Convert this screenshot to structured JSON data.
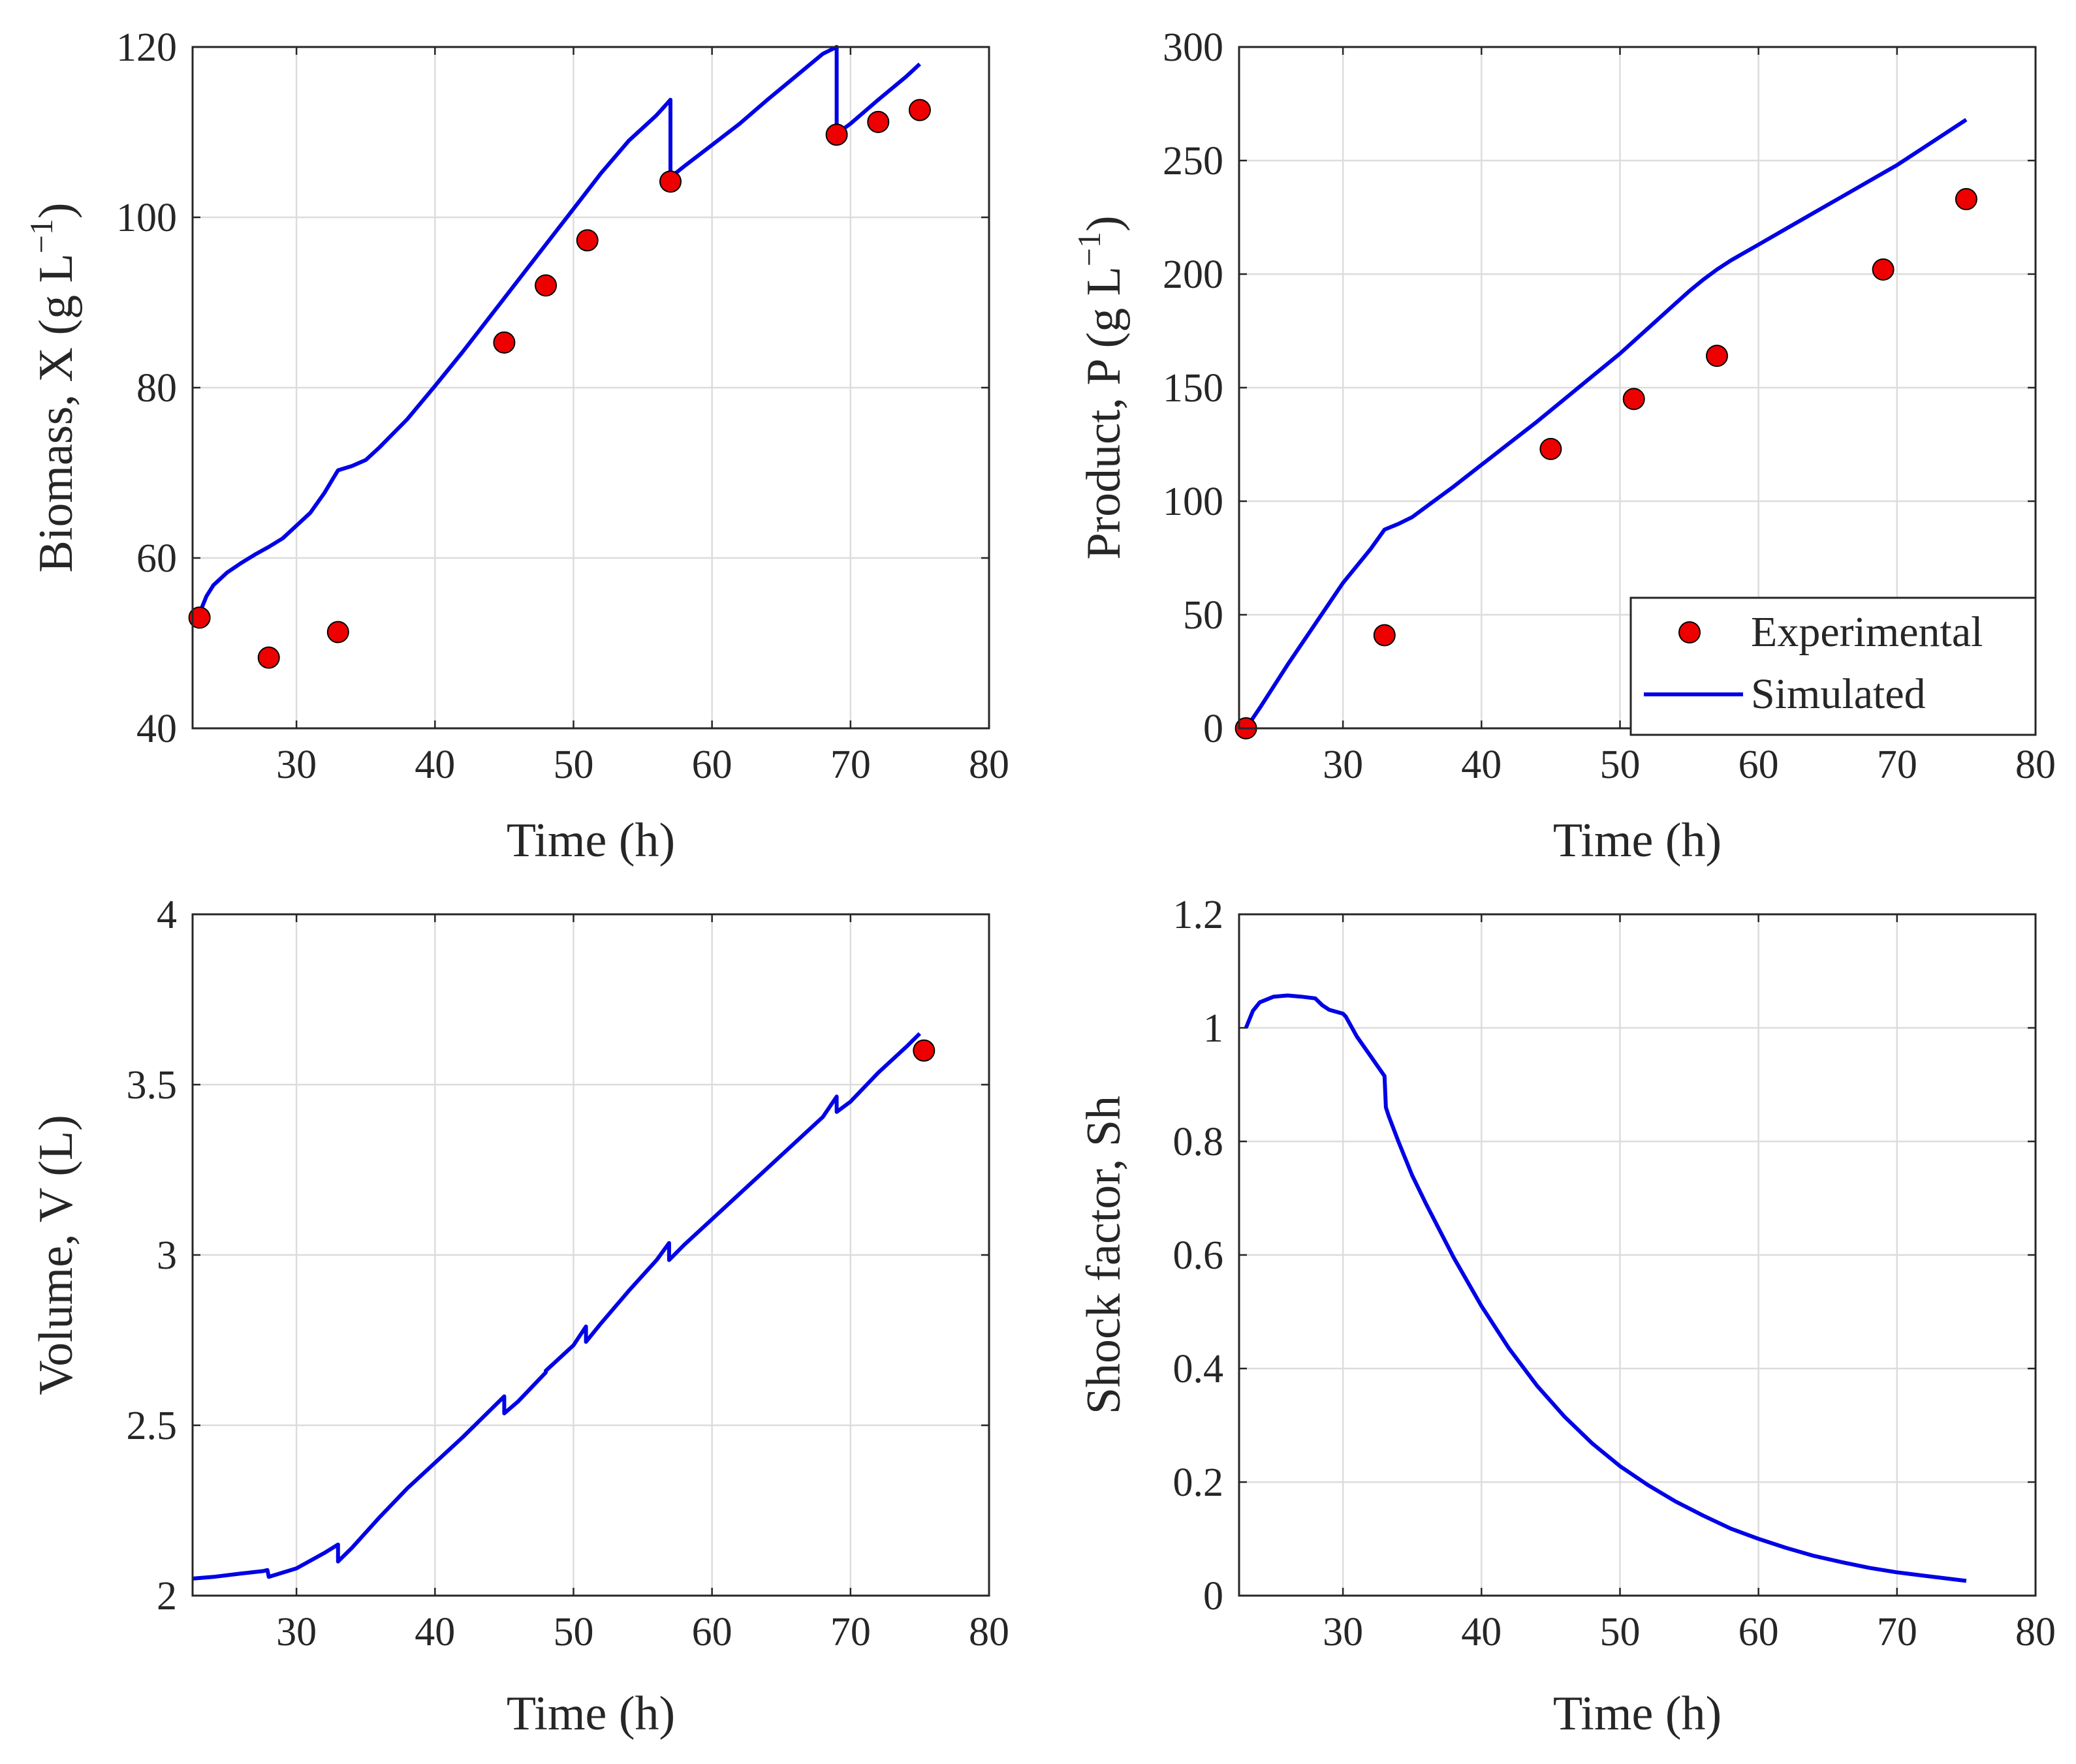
{
  "colors": {
    "simulated": "#0000e6",
    "experimental_fill": "#ee0000",
    "marker_edge": "#000000"
  },
  "chart_data": [
    {
      "id": "biomass",
      "type": "line",
      "xlabel": "Time (h)",
      "ylabel_main": "Biomass, X (g L",
      "ylabel_sup": "−1",
      "ylabel_close": ")",
      "xlim": [
        22.5,
        80
      ],
      "ylim": [
        40,
        120
      ],
      "xticks": [
        30,
        40,
        50,
        60,
        70,
        80
      ],
      "yticks": [
        40,
        60,
        80,
        100,
        120
      ],
      "grid": true,
      "series": [
        {
          "name": "Simulated",
          "kind": "line",
          "x": [
            23,
            23.5,
            24,
            25,
            26,
            27,
            28,
            29,
            30,
            31,
            32,
            33,
            34,
            35,
            36,
            38,
            40,
            42,
            44,
            46,
            48,
            50,
            52,
            54,
            55,
            56,
            57,
            57,
            58,
            60,
            62,
            64,
            66,
            68,
            69,
            69,
            70,
            72,
            74,
            75
          ],
          "y": [
            53.5,
            55.5,
            56.8,
            58.3,
            59.4,
            60.4,
            61.3,
            62.3,
            63.8,
            65.3,
            67.6,
            70.3,
            70.8,
            71.5,
            73,
            76.3,
            80.2,
            84.2,
            88.4,
            92.6,
            96.8,
            101,
            105.2,
            109,
            110.5,
            112,
            113.8,
            104.7,
            106,
            108.5,
            111,
            113.8,
            116.5,
            119.2,
            120,
            109.8,
            111,
            113.8,
            116.5,
            118
          ]
        },
        {
          "name": "Experimental",
          "kind": "scatter",
          "x": [
            23,
            28,
            33,
            45,
            48,
            51,
            57,
            69,
            72,
            75
          ],
          "y": [
            53,
            48.3,
            51.3,
            85.3,
            92,
            97.3,
            104.2,
            109.7,
            111.2,
            112.6
          ]
        }
      ]
    },
    {
      "id": "product",
      "type": "line",
      "xlabel": "Time (h)",
      "ylabel_main": "Product, P (g L",
      "ylabel_sup": "−1",
      "ylabel_close": ")",
      "xlim": [
        22.5,
        80
      ],
      "ylim": [
        0,
        300
      ],
      "xticks": [
        30,
        40,
        50,
        60,
        70,
        80
      ],
      "yticks": [
        0,
        50,
        100,
        150,
        200,
        250,
        300
      ],
      "grid": true,
      "legend": {
        "location": "bottom-right",
        "entries": [
          "Experimental",
          "Simulated"
        ]
      },
      "series": [
        {
          "name": "Simulated",
          "kind": "line",
          "x": [
            23,
            24,
            26,
            28,
            30,
            32,
            33,
            34,
            35,
            36,
            38,
            40,
            42,
            44,
            46,
            48,
            50,
            52,
            54,
            55,
            56,
            57,
            58,
            60,
            62,
            64,
            66,
            68,
            69,
            70,
            72,
            74,
            75
          ],
          "y": [
            0,
            9,
            28,
            46,
            64,
            79,
            87.5,
            90,
            93,
            97.5,
            106.5,
            116,
            125.5,
            135,
            145,
            155,
            165,
            176,
            187,
            192.5,
            197.5,
            202,
            206,
            213,
            220,
            227,
            234,
            241,
            244.5,
            248,
            256,
            264,
            268
          ]
        },
        {
          "name": "Experimental",
          "kind": "scatter",
          "x": [
            23,
            33,
            45,
            51,
            57,
            69,
            75
          ],
          "y": [
            0,
            41,
            123,
            145,
            164,
            202,
            233
          ]
        }
      ]
    },
    {
      "id": "volume",
      "type": "line",
      "xlabel": "Time (h)",
      "ylabel_main": "Volume, V (L)",
      "xlim": [
        22.5,
        80
      ],
      "ylim": [
        2,
        4
      ],
      "xticks": [
        30,
        40,
        50,
        60,
        70,
        80
      ],
      "yticks": [
        2,
        2.5,
        3,
        3.5,
        4
      ],
      "grid": true,
      "series": [
        {
          "name": "Simulated",
          "kind": "line",
          "x": [
            22.5,
            24,
            26,
            27.6,
            27.9,
            28,
            30,
            32,
            33,
            33,
            34,
            36,
            38,
            40,
            42,
            44,
            45,
            45,
            46,
            48,
            48,
            50,
            50.9,
            50.9,
            52,
            54,
            56,
            56.9,
            56.9,
            58,
            60,
            62,
            64,
            66,
            68,
            69,
            69,
            70,
            72,
            72,
            74,
            75
          ],
          "y": [
            2.05,
            2.055,
            2.065,
            2.072,
            2.075,
            2.055,
            2.08,
            2.125,
            2.15,
            2.1,
            2.14,
            2.23,
            2.315,
            2.39,
            2.465,
            2.545,
            2.585,
            2.535,
            2.57,
            2.655,
            2.66,
            2.735,
            2.79,
            2.745,
            2.8,
            2.895,
            2.985,
            3.035,
            2.985,
            3.03,
            3.105,
            3.18,
            3.255,
            3.33,
            3.405,
            3.465,
            3.42,
            3.45,
            3.535,
            3.535,
            3.61,
            3.65
          ]
        },
        {
          "name": "Experimental",
          "kind": "scatter",
          "x": [
            75.3
          ],
          "y": [
            3.6
          ]
        }
      ]
    },
    {
      "id": "shock",
      "type": "line",
      "xlabel": "Time (h)",
      "ylabel_main": "Shock factor, Sh",
      "xlim": [
        22.5,
        80
      ],
      "ylim": [
        0,
        1.2
      ],
      "xticks": [
        30,
        40,
        50,
        60,
        70,
        80
      ],
      "yticks": [
        0,
        0.2,
        0.4,
        0.6,
        0.8,
        1,
        1.2
      ],
      "grid": true,
      "series": [
        {
          "name": "Simulated",
          "kind": "line",
          "x": [
            23,
            23.5,
            24,
            25,
            26,
            27,
            28,
            28.5,
            29,
            30,
            30.2,
            31,
            32,
            33,
            33.1,
            33.3,
            34,
            35,
            36,
            38,
            40,
            42,
            44,
            46,
            48,
            50,
            52,
            54,
            56,
            58,
            60,
            62,
            64,
            66,
            68,
            70,
            72,
            75
          ],
          "y": [
            1.0,
            1.03,
            1.045,
            1.055,
            1.057,
            1.055,
            1.052,
            1.04,
            1.032,
            1.025,
            1.02,
            0.985,
            0.95,
            0.915,
            0.86,
            0.845,
            0.8,
            0.74,
            0.69,
            0.595,
            0.51,
            0.435,
            0.37,
            0.315,
            0.268,
            0.228,
            0.195,
            0.166,
            0.141,
            0.118,
            0.1,
            0.084,
            0.07,
            0.059,
            0.049,
            0.041,
            0.035,
            0.026
          ]
        }
      ]
    }
  ]
}
